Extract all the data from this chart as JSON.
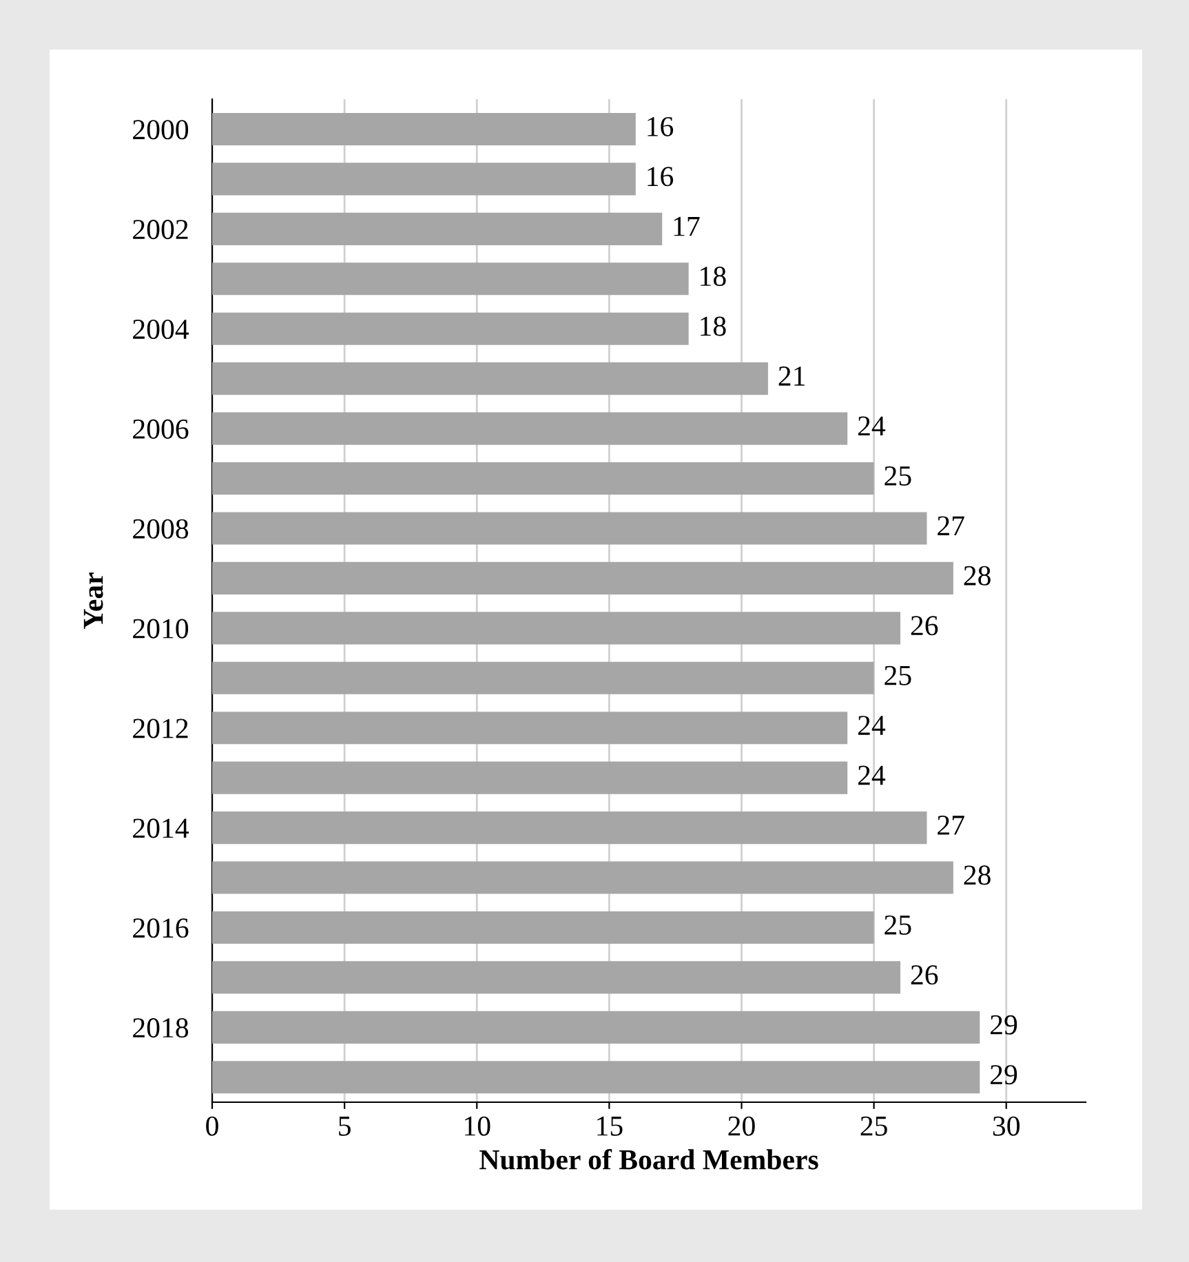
{
  "chart_data": {
    "type": "bar",
    "orientation": "horizontal",
    "xlabel": "Number of Board Members",
    "ylabel": "Year",
    "categories": [
      "2000",
      null,
      "2002",
      null,
      "2004",
      null,
      "2006",
      null,
      "2008",
      null,
      "2010",
      null,
      "2012",
      null,
      "2014",
      null,
      "2016",
      null,
      "2018",
      null
    ],
    "values": [
      16,
      16,
      17,
      18,
      18,
      21,
      24,
      25,
      27,
      28,
      26,
      25,
      24,
      24,
      27,
      28,
      25,
      26,
      29,
      29
    ],
    "color": "#a6a6a6",
    "xlim": [
      0,
      33
    ],
    "xticks": [
      0,
      5,
      10,
      15,
      20,
      25,
      30
    ],
    "grid": "x",
    "data_labels": true
  }
}
